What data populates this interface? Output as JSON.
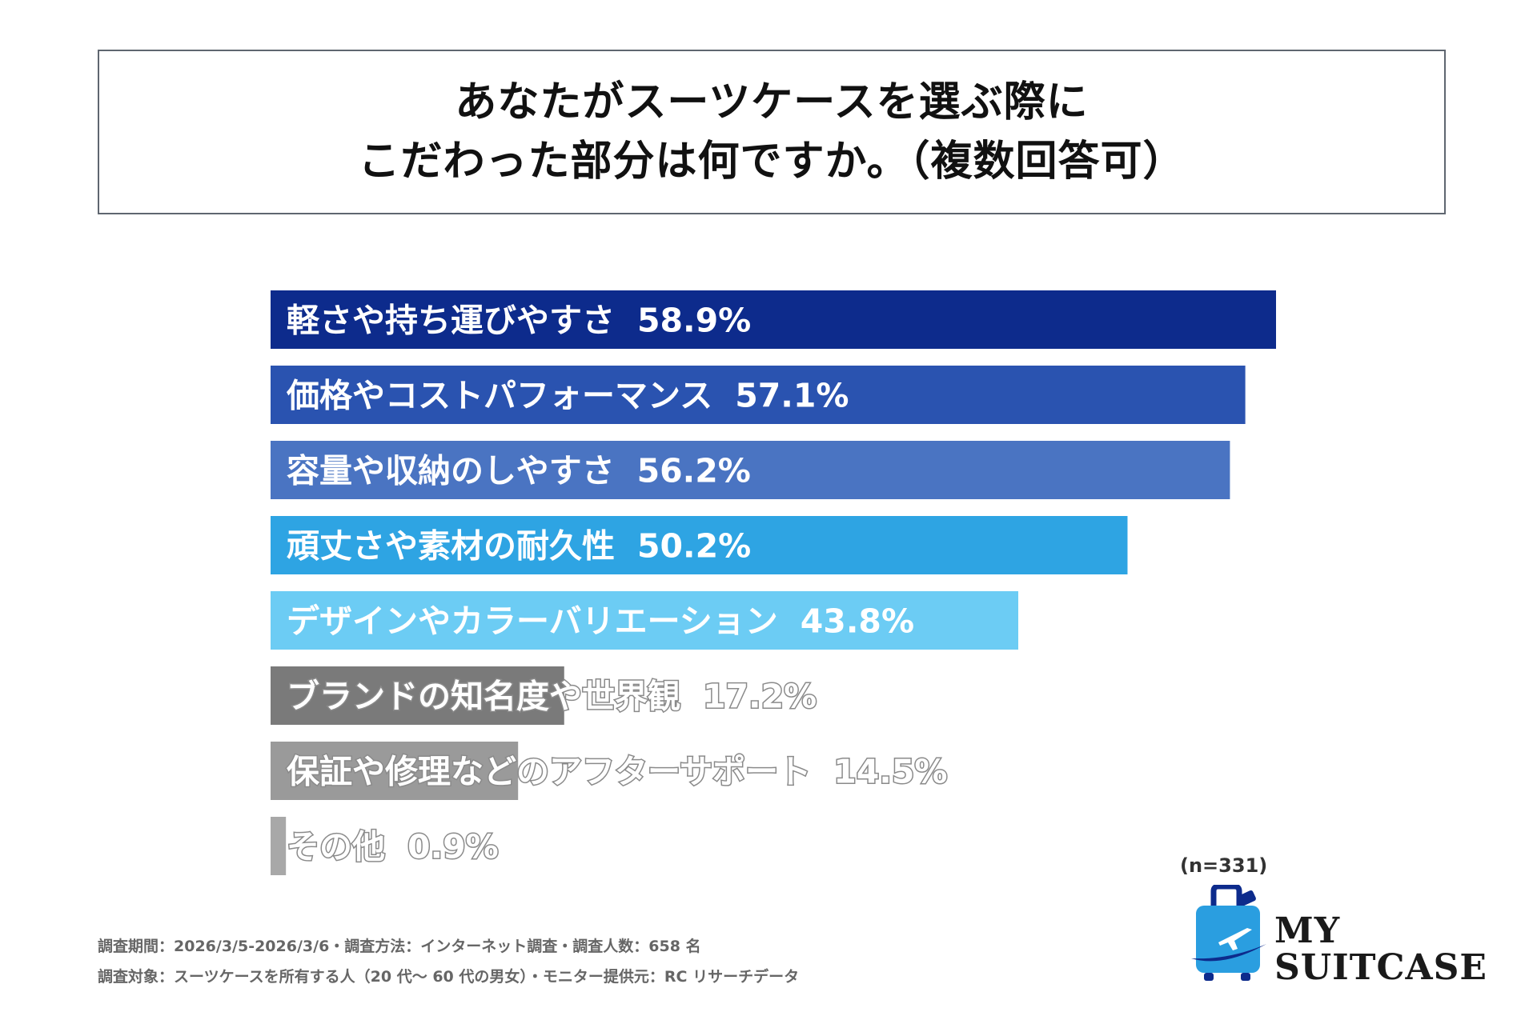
{
  "title": {
    "line1": "あなたがスーツケースを選ぶ際に",
    "line2": "こだわった部分は何ですか。（複数回答可）"
  },
  "chart_data": {
    "type": "bar",
    "orientation": "horizontal",
    "unit": "%",
    "xlim": [
      0,
      58.9
    ],
    "categories": [
      "軽さや持ち運びやすさ",
      "価格やコストパフォーマンス",
      "容量や収納のしやすさ",
      "頑丈さや素材の耐久性",
      "デザインやカラーバリエーション",
      "ブランドの知名度や世界観",
      "保証や修理などのアフターサポート",
      "その他"
    ],
    "values": [
      58.9,
      57.1,
      56.2,
      50.2,
      43.8,
      17.2,
      14.5,
      0.9
    ],
    "value_labels": [
      "58.9%",
      "57.1%",
      "56.2%",
      "50.2%",
      "43.8%",
      "17.2%",
      "14.5%",
      "0.9%"
    ],
    "colors": [
      "#0d2b8c",
      "#2a53b0",
      "#4a74c2",
      "#2ea4e3",
      "#6cccf4",
      "#7a7a7a",
      "#9a9a9a",
      "#a8a8a8"
    ]
  },
  "sample_size": "(n=331)",
  "footnotes": [
    "調査期間：2026/3/5-2026/3/6・調査方法：インターネット調査・調査人数：658 名",
    "調査対象：スーツケースを所有する人（20 代～ 60 代の男女）・モニター提供元：RC リサーチデータ"
  ],
  "logo": {
    "line1": "MY",
    "line2": "SUITCASE",
    "colors": {
      "case": "#2a9ee0",
      "dark": "#0d2b8c"
    }
  }
}
